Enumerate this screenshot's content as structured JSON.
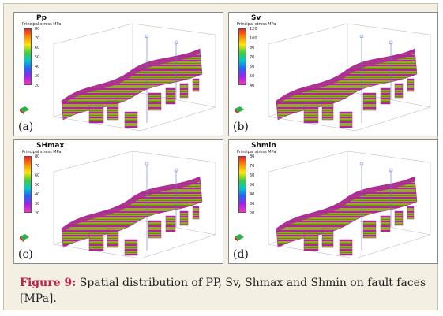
{
  "panels": [
    {
      "title": "Pp",
      "legend_caption": "Principal stress MPa",
      "ticks": [
        "80",
        "70",
        "60",
        "50",
        "40",
        "30",
        "20"
      ],
      "label": "(a)"
    },
    {
      "title": "Sv",
      "legend_caption": "Principal stress MPa",
      "ticks": [
        "120",
        "100",
        "80",
        "70",
        "60",
        "50",
        "40"
      ],
      "label": "(b)"
    },
    {
      "title": "SHmax",
      "legend_caption": "Principal stress MPa",
      "ticks": [
        "80",
        "70",
        "60",
        "50",
        "40",
        "30",
        "20"
      ],
      "label": "(c)"
    },
    {
      "title": "Shmin",
      "legend_caption": "Principal stress MPa",
      "ticks": [
        "80",
        "70",
        "60",
        "50",
        "40",
        "30",
        "20"
      ],
      "label": "(d)"
    }
  ],
  "caption": {
    "figure_label": "Figure 9:",
    "text": " Spatial distribution of PP, Sv, Shmax and Shmin on fault faces [MPa]."
  },
  "colors": {
    "legend_scale": [
      "#ff2020",
      "#ff8c00",
      "#ffe600",
      "#3ccf3c",
      "#00c8c8",
      "#1e64ff",
      "#a020f0",
      "#ff30c0"
    ],
    "fault_magenta": "#b0269a",
    "fault_olive": "#9aa630",
    "caption_label": "#c0204a"
  }
}
